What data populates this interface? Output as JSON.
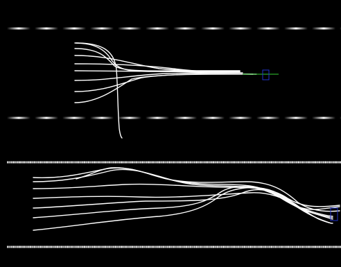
{
  "scene": {
    "background_color": "#000000",
    "divider_color": "#ffffff",
    "curve_color": "#ffffff",
    "top_panel": {
      "curve_count": 8,
      "target_marker_color": "#2233cc",
      "target_line_color": "#33cc33"
    },
    "bottom_panel": {
      "curve_count": 8,
      "target_marker_color": "#2233cc"
    }
  }
}
